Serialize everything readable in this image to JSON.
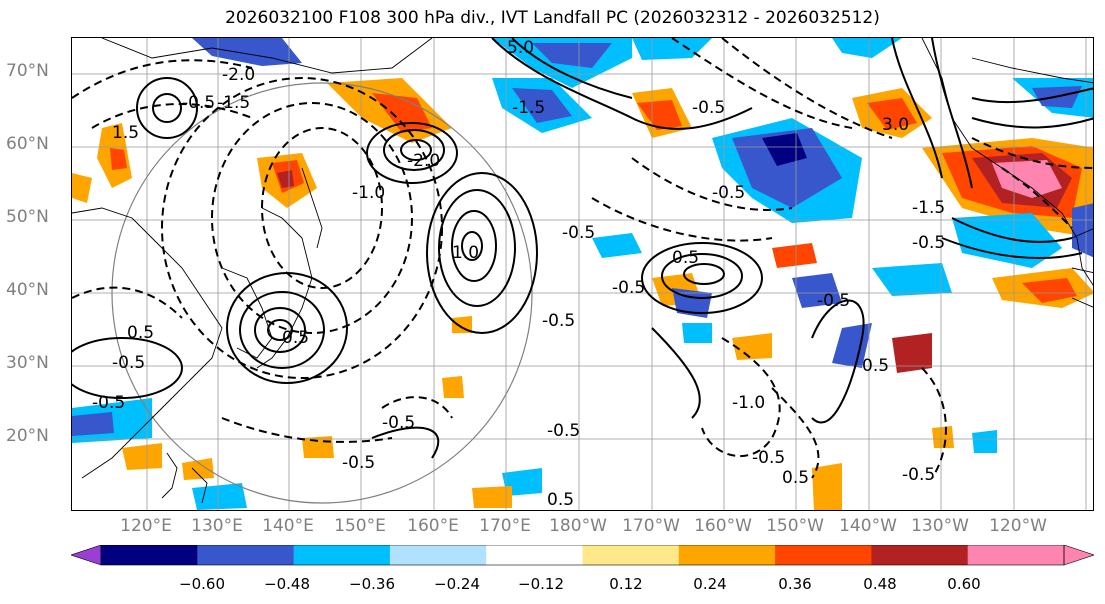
{
  "title": "2026032100 F108 300 hPa div., IVT Landfall PC (2026032312 - 2026032512)",
  "lat_labels": [
    "70°N",
    "60°N",
    "50°N",
    "40°N",
    "30°N",
    "20°N"
  ],
  "lon_labels": [
    "120°E",
    "130°E",
    "140°E",
    "150°E",
    "160°E",
    "170°E",
    "180°W",
    "170°W",
    "160°W",
    "150°W",
    "140°W",
    "130°W",
    "120°W"
  ],
  "colorbar": {
    "tick_labels": [
      "−0.60",
      "−0.48",
      "−0.36",
      "−0.24",
      "−0.12",
      "0.12",
      "0.24",
      "0.36",
      "0.48",
      "0.60"
    ],
    "colors": [
      "#9b3fd4",
      "#000080",
      "#3857cc",
      "#00bfff",
      "#b0e2ff",
      "#ffffff",
      "#ffe88a",
      "#ffa500",
      "#ff4500",
      "#b22222",
      "#ff85b0",
      "#ff85b0"
    ]
  },
  "contour_labels": [
    "-0.5",
    "-1.0",
    "-1.5",
    "-2.0",
    "-0.5",
    "-0.5",
    "-0.5",
    "-0.5",
    "-1.0",
    "-0.5",
    "0.5",
    "0.5",
    "1.0",
    "0.5",
    "-0.5",
    "-0.5",
    "-0.5",
    "-0.5",
    "-0.5",
    "-1.5",
    "-0.5",
    "0.5",
    "-0.5",
    "3.0",
    "0.5",
    "-2.0",
    "-0.5",
    "1.5",
    "0.5",
    "-0.5",
    "-1.5",
    "5.0"
  ]
}
